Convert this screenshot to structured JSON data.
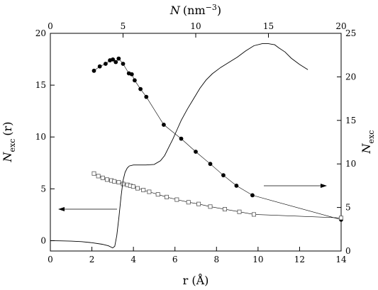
{
  "chart_data": {
    "type": "scatter",
    "bottom_axis": {
      "label": "r (Å)",
      "range": [
        0,
        14
      ],
      "ticks": [
        0,
        2,
        4,
        6,
        8,
        10,
        12,
        14
      ]
    },
    "top_axis": {
      "label_main": "N",
      "label_unit": "(nm",
      "label_exp": "−3",
      "label_close": ")",
      "range": [
        0,
        20
      ],
      "ticks": [
        0,
        5,
        10,
        15,
        20
      ]
    },
    "left_axis": {
      "label_main": "N",
      "label_sub": "exc",
      "label_suffix": "(r)",
      "range": [
        -1,
        20
      ],
      "ticks": [
        0,
        5,
        10,
        15,
        20
      ]
    },
    "right_axis": {
      "label_main": "N",
      "label_sub": "exc",
      "range": [
        0,
        25
      ],
      "ticks": [
        0,
        5,
        10,
        15,
        20,
        25
      ]
    },
    "series": [
      {
        "style": "filled-circles",
        "x_axis": "top",
        "y_axis": "right",
        "x": [
          3.0,
          3.4,
          3.8,
          4.1,
          4.3,
          4.5,
          4.7,
          5.0,
          5.4,
          5.6,
          5.8,
          6.2,
          6.6,
          7.8,
          9.0,
          10.0,
          11.0,
          11.9,
          12.8,
          13.9,
          20.0
        ],
        "y": [
          20.7,
          21.2,
          21.5,
          21.9,
          22.0,
          21.7,
          22.1,
          21.5,
          20.4,
          20.3,
          19.6,
          18.6,
          17.7,
          14.5,
          12.9,
          11.4,
          10.0,
          8.7,
          7.5,
          6.4,
          3.6
        ]
      },
      {
        "style": "open-squares",
        "x_axis": "top",
        "y_axis": "right",
        "x": [
          3.0,
          3.3,
          3.6,
          3.9,
          4.2,
          4.4,
          4.7,
          5.0,
          5.3,
          5.5,
          5.7,
          6.0,
          6.4,
          6.8,
          7.4,
          8.0,
          8.7,
          9.5,
          10.2,
          11.0,
          12.0,
          13.0,
          14.0,
          20.0
        ],
        "y": [
          8.9,
          8.6,
          8.4,
          8.2,
          8.1,
          8.0,
          7.9,
          7.7,
          7.6,
          7.5,
          7.4,
          7.2,
          7.0,
          6.8,
          6.5,
          6.2,
          5.9,
          5.6,
          5.4,
          5.1,
          4.8,
          4.5,
          4.2,
          3.8
        ]
      },
      {
        "style": "line",
        "x_axis": "bottom",
        "y_axis": "left",
        "x": [
          0,
          0.5,
          1.0,
          1.5,
          2.0,
          2.5,
          2.8,
          3.0,
          3.1,
          3.2,
          3.3,
          3.4,
          3.5,
          3.6,
          3.7,
          3.8,
          4.0,
          4.3,
          4.6,
          5.0,
          5.3,
          5.5,
          5.7,
          5.9,
          6.1,
          6.3,
          6.6,
          6.9,
          7.2,
          7.5,
          7.8,
          8.2,
          8.6,
          9.0,
          9.4,
          9.8,
          10.2,
          10.5,
          10.8,
          11.0,
          11.3,
          11.6,
          12.0,
          12.4
        ],
        "y": [
          0.0,
          -0.02,
          -0.05,
          -0.1,
          -0.2,
          -0.35,
          -0.5,
          -0.7,
          -0.55,
          0.5,
          2.2,
          4.2,
          5.8,
          6.6,
          7.0,
          7.2,
          7.3,
          7.3,
          7.3,
          7.35,
          7.7,
          8.2,
          9.0,
          9.8,
          10.7,
          11.6,
          12.7,
          13.7,
          14.7,
          15.5,
          16.1,
          16.7,
          17.2,
          17.7,
          18.3,
          18.8,
          19.0,
          19.0,
          18.9,
          18.6,
          18.2,
          17.6,
          17.0,
          16.5
        ]
      }
    ],
    "annotations": [
      {
        "type": "arrow",
        "direction": "left",
        "axis": "left"
      },
      {
        "type": "arrow",
        "direction": "right",
        "axis": "right"
      }
    ],
    "grid": false,
    "legend": "none"
  }
}
